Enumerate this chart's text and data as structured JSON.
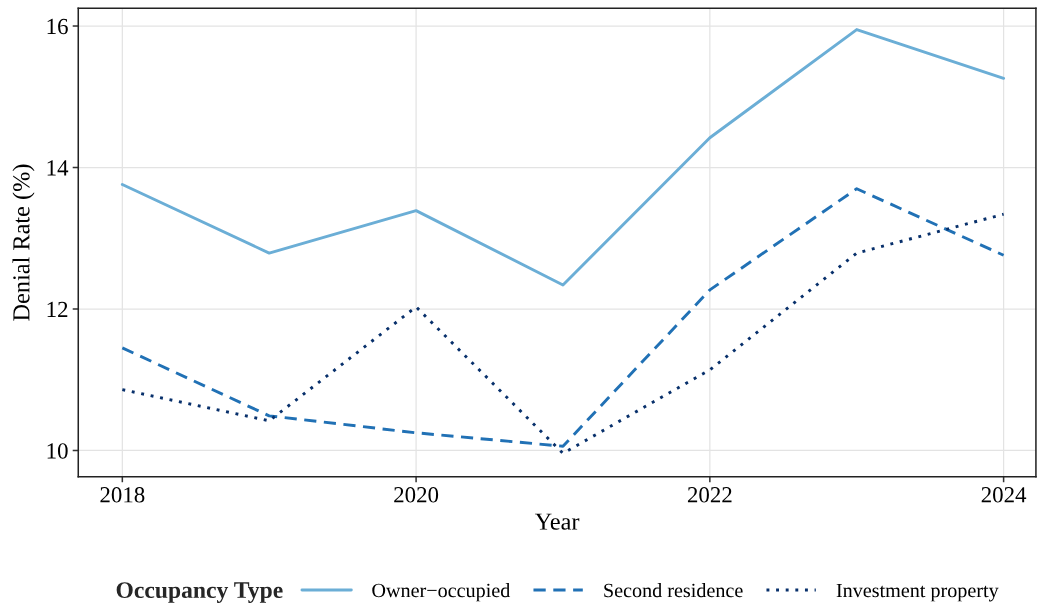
{
  "chart_data": {
    "type": "line",
    "xlabel": "Year",
    "ylabel": "Denial Rate (%)",
    "legend_title": "Occupancy Type",
    "x": [
      2018,
      2019,
      2020,
      2021,
      2022,
      2023,
      2024
    ],
    "series": [
      {
        "name": "Owner−occupied",
        "color": "#6baed6",
        "line_style": "solid",
        "values": [
          13.76,
          12.79,
          13.39,
          12.34,
          14.42,
          15.95,
          15.26
        ]
      },
      {
        "name": "Second residence",
        "color": "#2171b5",
        "line_style": "dashed",
        "values": [
          11.45,
          10.49,
          10.25,
          10.06,
          12.27,
          13.7,
          12.76
        ]
      },
      {
        "name": "Investment property",
        "color": "#08306b",
        "line_style": "dotted",
        "values": [
          10.86,
          10.42,
          12.03,
          9.96,
          11.14,
          12.79,
          13.34
        ]
      }
    ],
    "xlim": [
      2017.7,
      2024.22
    ],
    "ylim": [
      9.63,
      16.25
    ],
    "xticks": [
      2018,
      2020,
      2022,
      2024
    ],
    "yticks": [
      10,
      12,
      14,
      16
    ],
    "grid": true,
    "legend": "bottom"
  }
}
